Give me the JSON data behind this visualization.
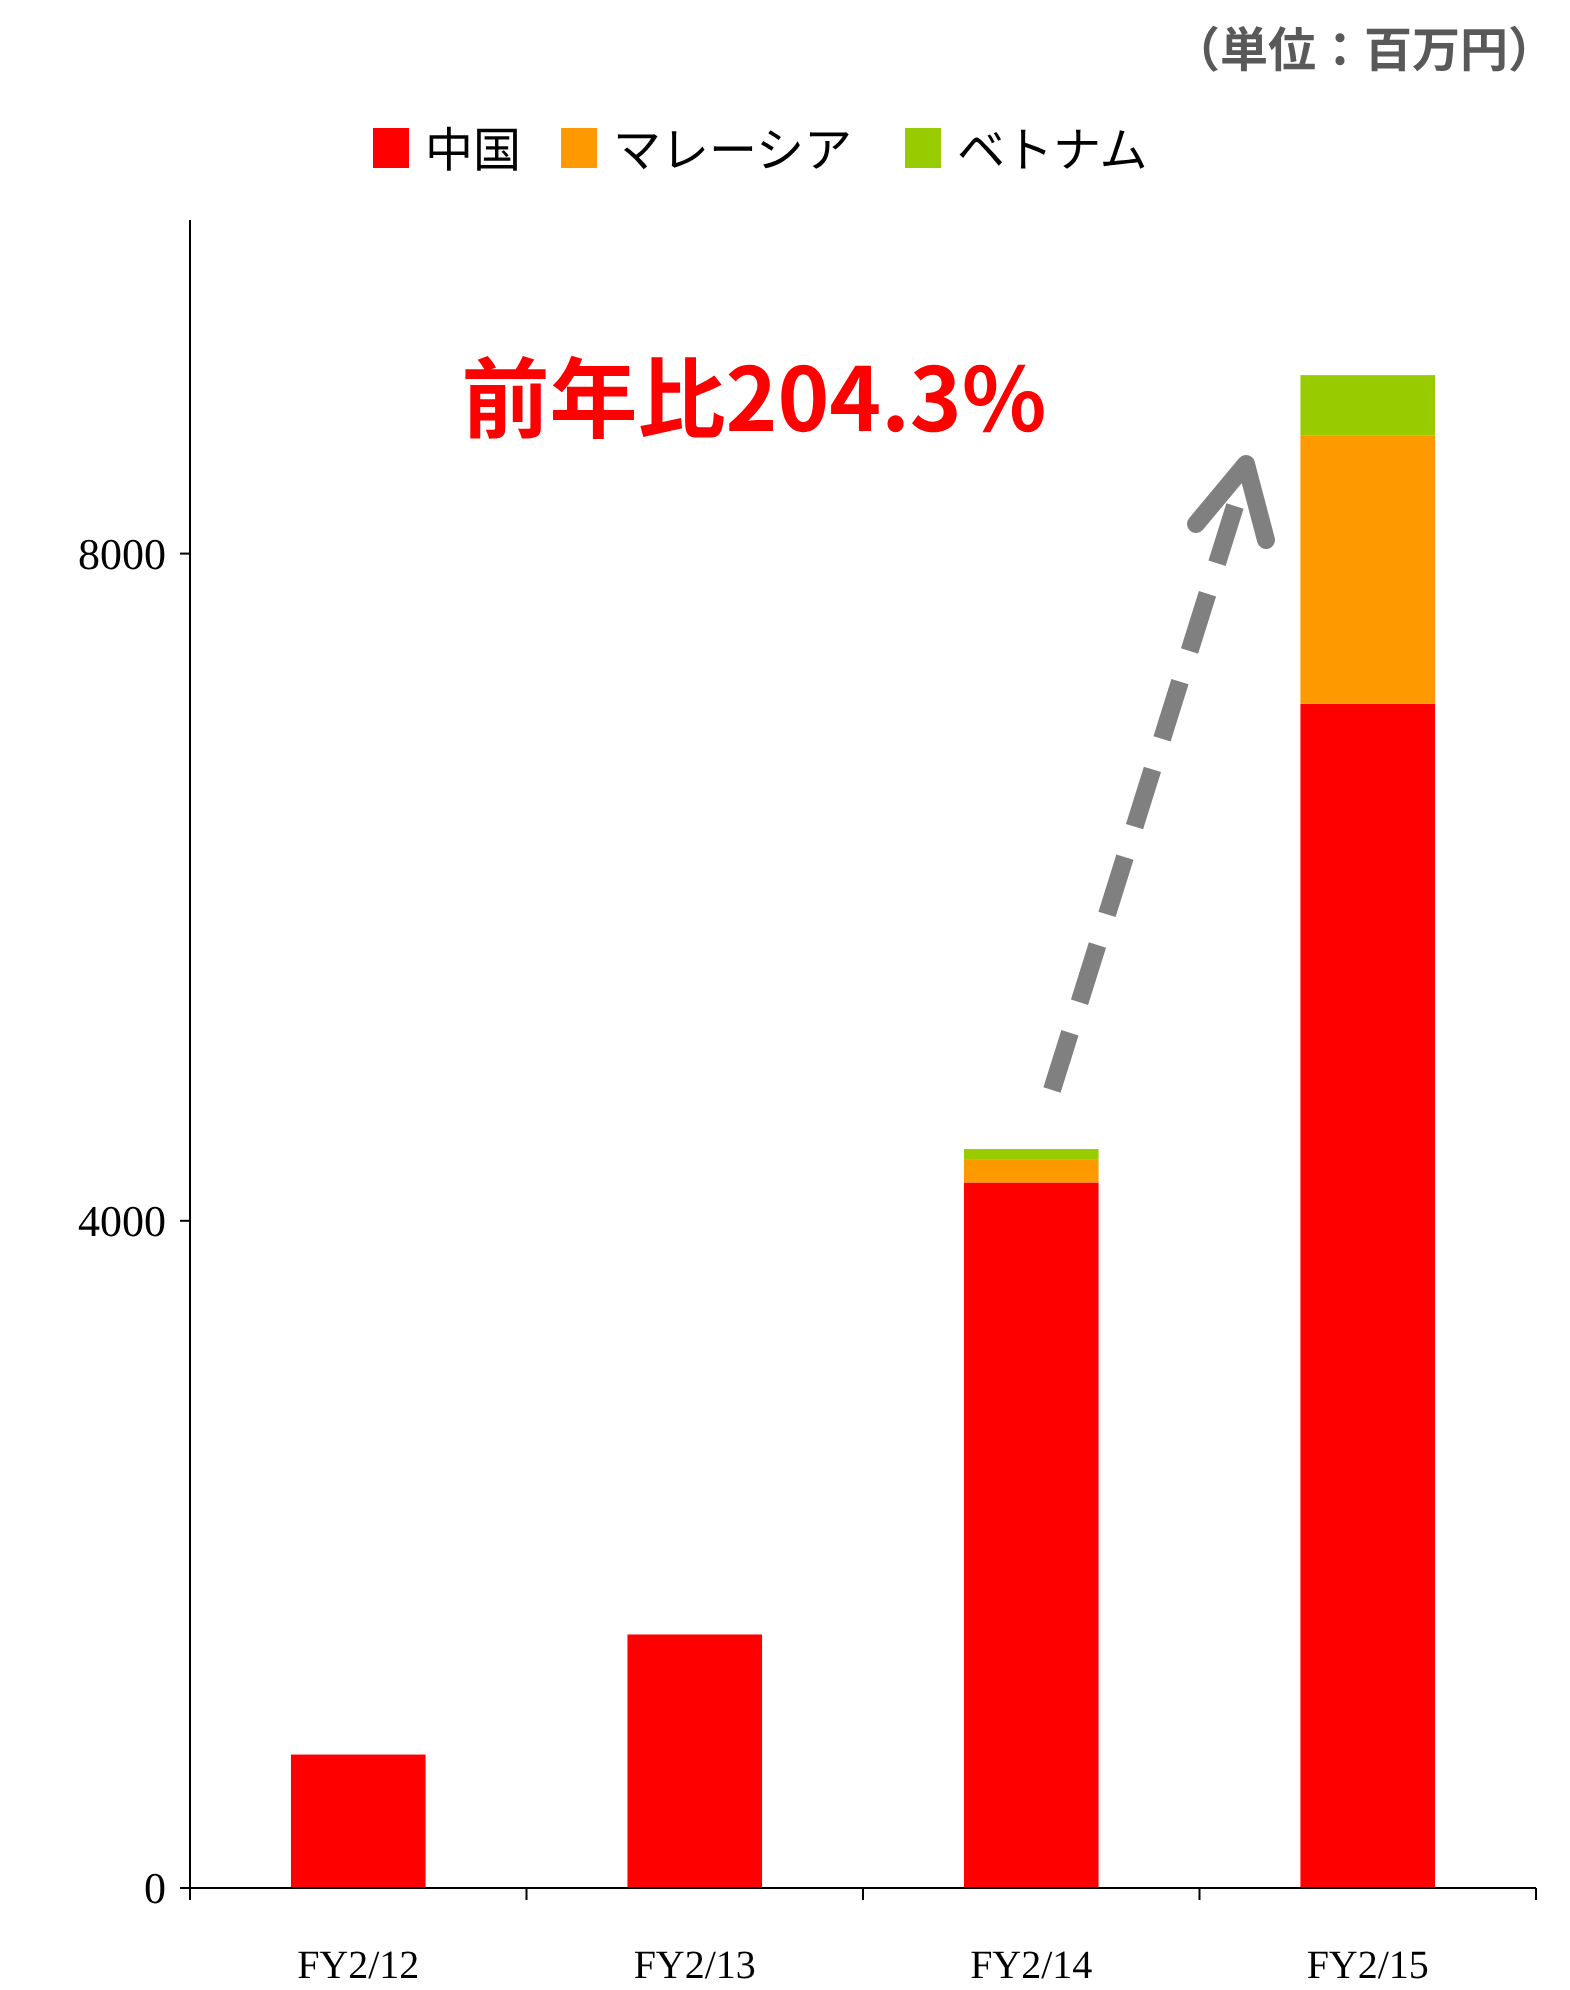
{
  "chart_data": {
    "type": "bar",
    "stacked": true,
    "categories": [
      "FY2/12",
      "FY2/13",
      "FY2/14",
      "FY2/15"
    ],
    "series": [
      {
        "name": "中国",
        "color": "#ff0000",
        "values": [
          800,
          1520,
          4230,
          7100
        ]
      },
      {
        "name": "マレーシア",
        "color": "#ff9900",
        "values": [
          0,
          0,
          140,
          1610
        ]
      },
      {
        "name": "ベトナム",
        "color": "#99cc00",
        "values": [
          0,
          0,
          60,
          360
        ]
      }
    ],
    "ylim": [
      0,
      10000
    ],
    "yticks": [
      0,
      4000,
      8000
    ],
    "grid": false,
    "legend": "top",
    "annotations": [
      "（単位：百万円）",
      "前年比204.3%"
    ]
  }
}
